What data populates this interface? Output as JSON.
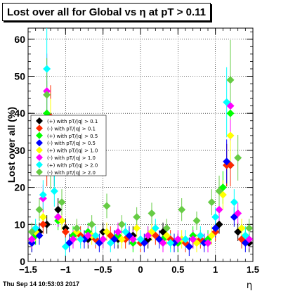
{
  "chart_data": {
    "type": "scatter",
    "title": "Lost over all for Global vs   η at pT > 0.11",
    "xlabel": "η",
    "ylabel": "Lost over all (%)",
    "xlim": [
      -1.5,
      1.5
    ],
    "ylim": [
      0,
      63
    ],
    "x_ticks": [
      -1.5,
      -1,
      -0.5,
      0,
      0.5,
      1,
      1.5
    ],
    "x_tick_labels": [
      "−1.5",
      "−1",
      "−0.5",
      "0",
      "0.5",
      "1",
      "1.5"
    ],
    "y_ticks": [
      0,
      10,
      20,
      30,
      40,
      50,
      60
    ],
    "y_tick_labels": [
      "0",
      "10",
      "20",
      "30",
      "40",
      "50",
      "60"
    ],
    "grid": true,
    "legend_position": "left",
    "series": [
      {
        "name": "(+) with pT/|q| > 0.1",
        "color": "#000000",
        "x": [
          -1.45,
          -1.35,
          -1.25,
          -1.2,
          -1.15,
          -1.1,
          -1.0,
          -0.9,
          -0.7,
          -0.5,
          -0.3,
          -0.1,
          0.1,
          0.3,
          0.5,
          0.7,
          0.9,
          1.05,
          1.15,
          1.2,
          1.3,
          1.45
        ],
        "values": [
          5,
          8,
          10,
          38,
          26,
          14,
          9,
          7,
          6,
          8,
          6,
          7,
          6,
          8,
          5,
          6,
          5,
          10,
          26,
          26,
          8,
          5
        ]
      },
      {
        "name": "(-) with pT/|q| > 0.1",
        "color": "#ff2a00",
        "x": [
          -1.45,
          -1.3,
          -1.25,
          -1.2,
          -1.1,
          -1.0,
          -0.8,
          -0.6,
          -0.4,
          -0.2,
          0.0,
          0.2,
          0.4,
          0.6,
          0.8,
          1.0,
          1.15,
          1.2,
          1.35
        ],
        "values": [
          6,
          10,
          26,
          39,
          12,
          8,
          7,
          6,
          7,
          6,
          5,
          7,
          6,
          5,
          6,
          8,
          26,
          26,
          6
        ]
      },
      {
        "name": "(+) with pT/|q| > 0.5",
        "color": "#00ff00",
        "x": [
          -1.4,
          -1.25,
          -1.2,
          -1.1,
          -0.9,
          -0.7,
          -0.5,
          -0.3,
          -0.1,
          0.1,
          0.3,
          0.5,
          0.7,
          0.9,
          1.1,
          1.2,
          1.4
        ],
        "values": [
          7,
          40,
          35,
          11,
          7,
          8,
          6,
          7,
          5,
          7,
          6,
          5,
          7,
          6,
          20,
          40,
          7
        ]
      },
      {
        "name": "(-) with pT/|q| > 0.5",
        "color": "#0000ff",
        "x": [
          -1.45,
          -1.35,
          -1.2,
          -1.1,
          -0.95,
          -0.75,
          -0.55,
          -0.35,
          -0.15,
          0.05,
          0.25,
          0.45,
          0.65,
          0.85,
          1.0,
          1.15,
          1.25,
          1.4
        ],
        "values": [
          5,
          7,
          36,
          12,
          5,
          6,
          5,
          6,
          7,
          5,
          6,
          5,
          4,
          5,
          9,
          27,
          12,
          5
        ]
      },
      {
        "name": "(+) with pT/|q| > 1.0",
        "color": "#ffff00",
        "x": [
          -1.4,
          -1.3,
          -1.2,
          -1.05,
          -0.85,
          -0.65,
          -0.45,
          -0.25,
          -0.05,
          0.15,
          0.35,
          0.55,
          0.75,
          0.95,
          1.1,
          1.2,
          1.35
        ],
        "values": [
          8,
          12,
          36,
          11,
          8,
          7,
          8,
          6,
          9,
          8,
          7,
          6,
          5,
          7,
          18,
          34,
          9
        ]
      },
      {
        "name": "(-) with pT/|q| > 1.0",
        "color": "#ff00ff",
        "x": [
          -1.45,
          -1.3,
          -1.25,
          -1.1,
          -0.9,
          -0.7,
          -0.5,
          -0.3,
          -0.1,
          0.1,
          0.3,
          0.5,
          0.7,
          0.9,
          1.05,
          1.2,
          1.3,
          1.45
        ],
        "values": [
          6,
          17,
          46,
          12,
          6,
          7,
          6,
          8,
          6,
          7,
          5,
          6,
          6,
          5,
          14,
          42,
          13,
          6
        ]
      },
      {
        "name": "(+) with pT/|q| > 2.0",
        "color": "#00ffff",
        "x": [
          -1.4,
          -1.3,
          -1.25,
          -1.15,
          -1.0,
          -0.8,
          -0.6,
          -0.4,
          -0.2,
          0.0,
          0.2,
          0.4,
          0.6,
          0.8,
          1.0,
          1.15,
          1.25,
          1.4
        ],
        "values": [
          9,
          18,
          52,
          19,
          4,
          6,
          7,
          5,
          8,
          6,
          9,
          5,
          6,
          7,
          12,
          43,
          16,
          7
        ]
      },
      {
        "name": "(-) with pT/|q| > 2.0",
        "color": "#66cc44",
        "x": [
          -1.45,
          -1.35,
          -1.25,
          -1.2,
          -1.05,
          -0.85,
          -0.65,
          -0.45,
          -0.25,
          -0.05,
          0.15,
          0.35,
          0.55,
          0.75,
          0.95,
          1.05,
          1.2,
          1.3,
          1.45
        ],
        "values": [
          8,
          14,
          45,
          25,
          16,
          9,
          10,
          15,
          10,
          12,
          13,
          9,
          14,
          11,
          16,
          19,
          49,
          28,
          9
        ]
      }
    ]
  },
  "footer": {
    "timestamp": "Thu Sep 14 10:53:03 2017"
  }
}
